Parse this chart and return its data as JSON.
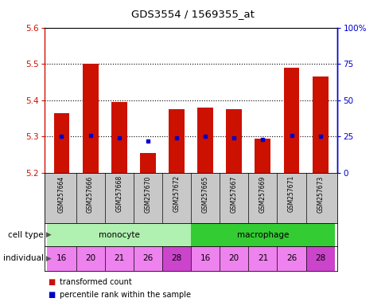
{
  "title": "GDS3554 / 1569355_at",
  "samples": [
    "GSM257664",
    "GSM257666",
    "GSM257668",
    "GSM257670",
    "GSM257672",
    "GSM257665",
    "GSM257667",
    "GSM257669",
    "GSM257671",
    "GSM257673"
  ],
  "transformed_count": [
    5.365,
    5.5,
    5.395,
    5.255,
    5.375,
    5.38,
    5.375,
    5.295,
    5.49,
    5.465
  ],
  "percentile_rank": [
    25,
    26,
    24,
    22,
    24,
    25,
    24,
    23,
    26,
    25
  ],
  "ymin": 5.2,
  "ymax": 5.6,
  "yticks": [
    5.2,
    5.3,
    5.4,
    5.5,
    5.6
  ],
  "right_yticks": [
    0,
    25,
    50,
    75,
    100
  ],
  "right_ylabels": [
    "0",
    "25",
    "50",
    "75",
    "100%"
  ],
  "cell_types": [
    {
      "label": "monocyte",
      "start": 0,
      "end": 5,
      "color": "#b0f0b0"
    },
    {
      "label": "macrophage",
      "start": 5,
      "end": 10,
      "color": "#33cc33"
    }
  ],
  "individuals": [
    "16",
    "20",
    "21",
    "26",
    "28",
    "16",
    "20",
    "21",
    "26",
    "28"
  ],
  "ind_colors": [
    "#ee82ee",
    "#ee82ee",
    "#ee82ee",
    "#ee82ee",
    "#cc44cc",
    "#ee82ee",
    "#ee82ee",
    "#ee82ee",
    "#ee82ee",
    "#cc44cc"
  ],
  "bar_color": "#cc1100",
  "blue_color": "#0000cc",
  "bar_width": 0.55,
  "left_axis_color": "#cc1100",
  "right_axis_color": "#0000cc",
  "legend_red": "transformed count",
  "legend_blue": "percentile rank within the sample",
  "bg_gray": "#c8c8c8",
  "grid_lines": [
    5.3,
    5.4,
    5.5
  ]
}
